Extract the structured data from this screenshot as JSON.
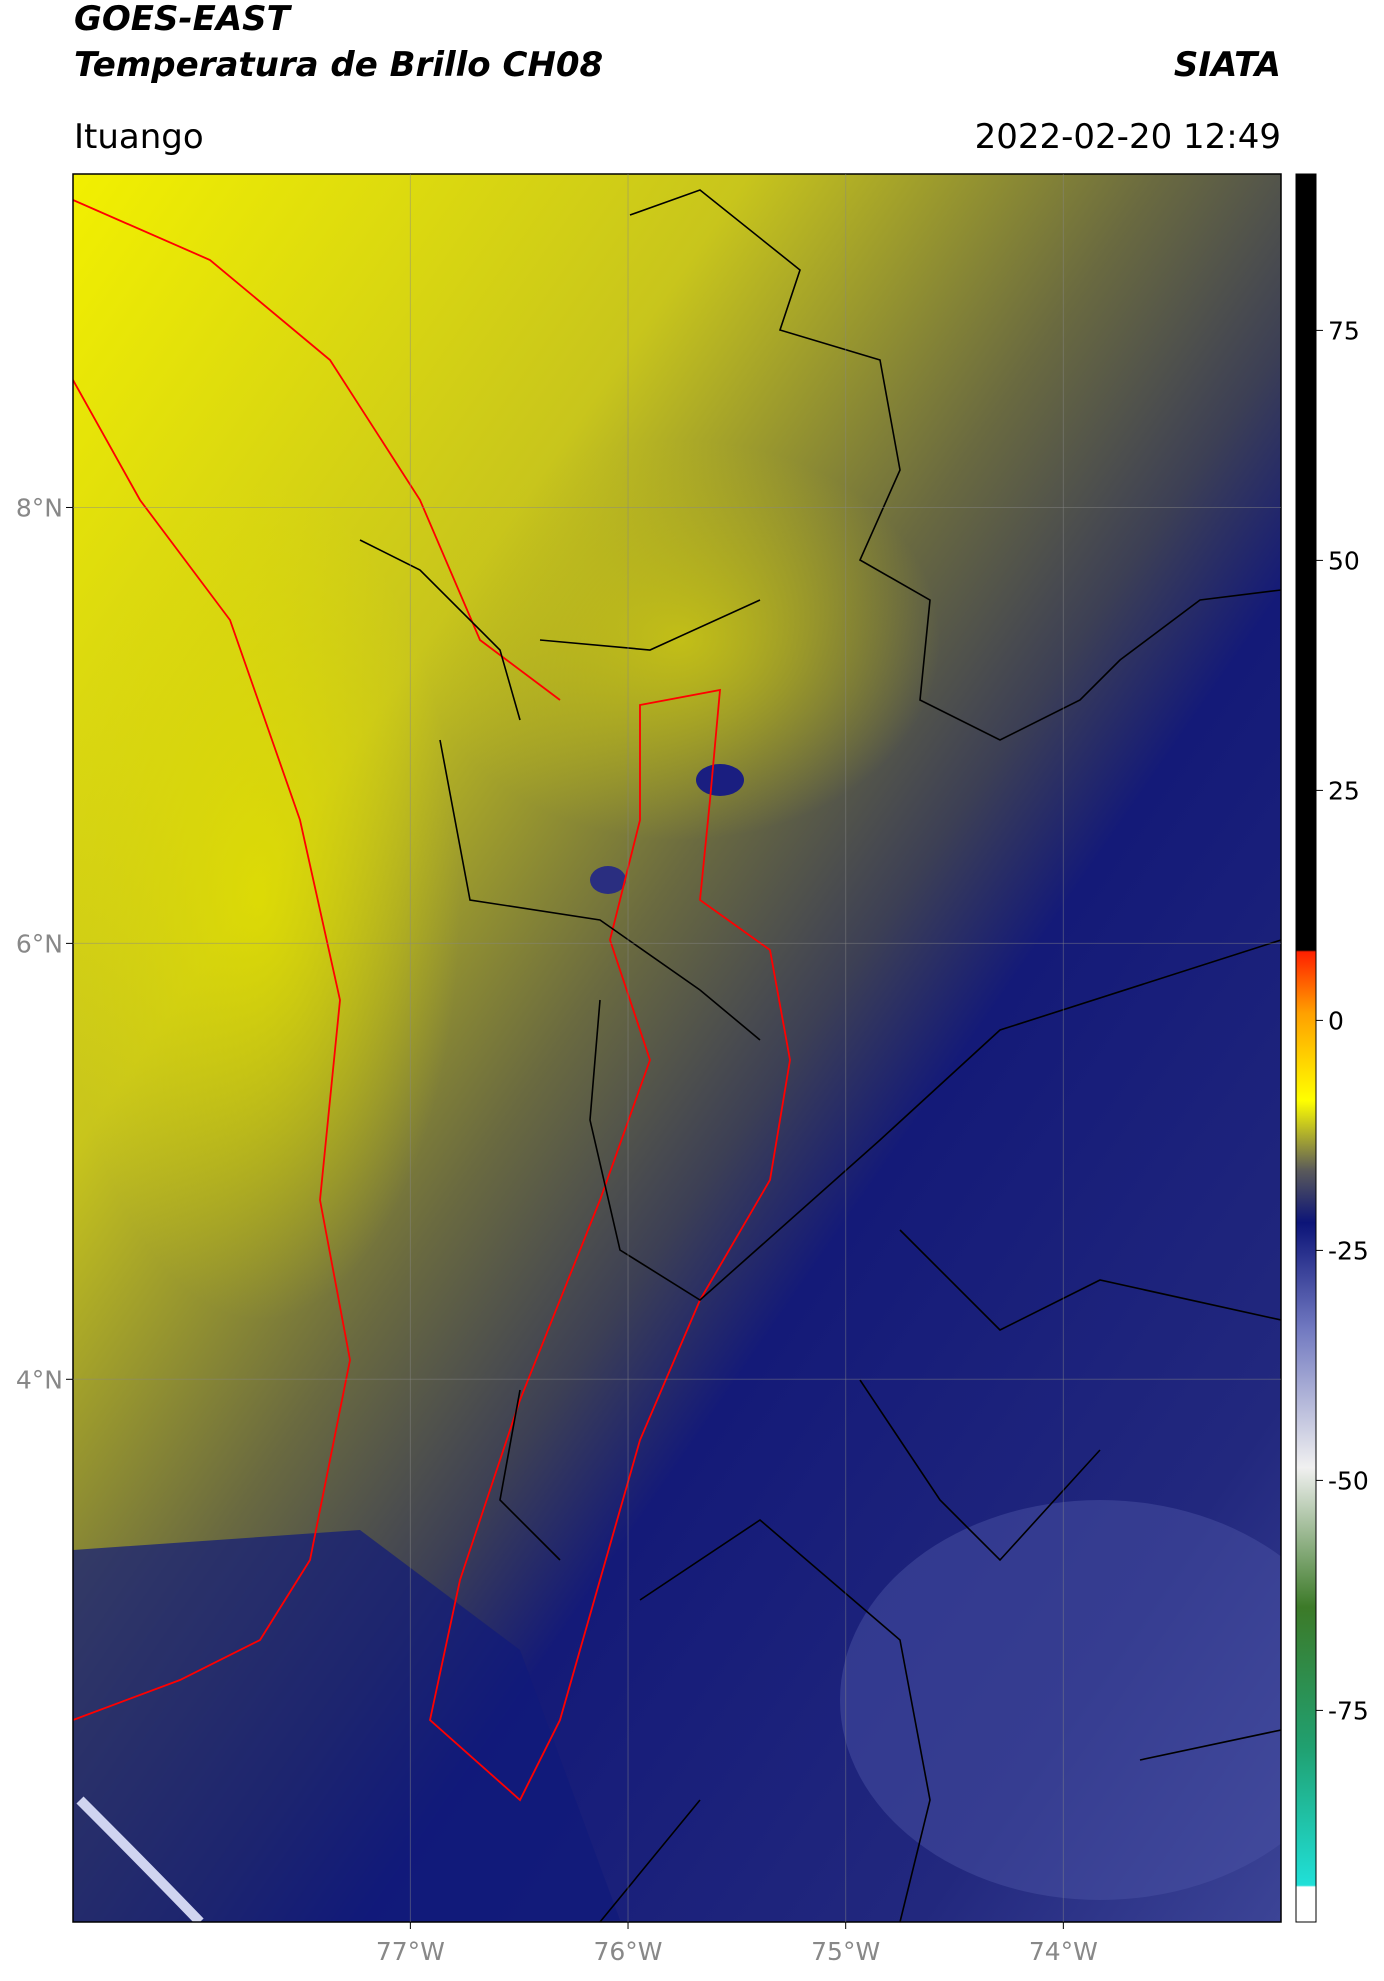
{
  "header": {
    "title": "GOES-EAST",
    "subtitle": "Temperatura de Brillo CH08",
    "brand": "SIATA",
    "location": "Ituango",
    "datetime": "2022-02-20 12:49"
  },
  "map": {
    "latlim": [
      1.51,
      9.53
    ],
    "lonlim": [
      -78.55,
      -73.0
    ],
    "latticks": [
      {
        "value": 8,
        "label": "8°N"
      },
      {
        "value": 6,
        "label": "6°N"
      },
      {
        "value": 4,
        "label": "4°N"
      }
    ],
    "lonticks": [
      {
        "value": -77,
        "label": "77°W"
      },
      {
        "value": -76,
        "label": "76°W"
      },
      {
        "value": -75,
        "label": "75°W"
      },
      {
        "value": -74,
        "label": "74°W"
      }
    ]
  },
  "colorbar": {
    "lim": [
      -98,
      92
    ],
    "ticks": [
      75,
      50,
      25,
      0,
      -25,
      -50,
      -75
    ]
  }
}
